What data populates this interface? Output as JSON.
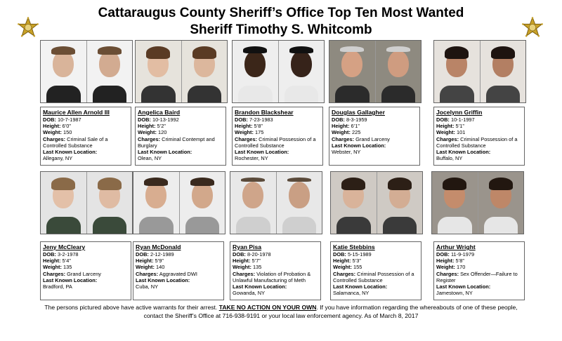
{
  "title_line1": "Cattaraugus County Sheriff’s Office Top Ten Most Wanted",
  "title_line2": "Sheriff Timothy S. Whitcomb",
  "labels": {
    "dob": "DOB:",
    "height": "Height:",
    "weight": "Weight:",
    "charges": "Charges:",
    "location": "Last Known Location:"
  },
  "wanted": [
    {
      "name": "Maurice Allen Arnold III",
      "dob": "10-7-1987",
      "height": "6’0”",
      "weight": "150",
      "charges": "Criminal Sale of a Controlled Substance",
      "location": "Allegany, NY"
    },
    {
      "name": "Angelica Baird",
      "dob": "10-13-1992",
      "height": "5’2”",
      "weight": "120",
      "charges": "Criminal Contempt and Burglary",
      "location": "Olean, NY"
    },
    {
      "name": "Brandon Blackshear",
      "dob": "7-23-1983",
      "height": "5’8”",
      "weight": "175",
      "charges": "Criminal Possession of a Controlled Substance",
      "location": "Rochester, NY"
    },
    {
      "name": "Douglas Gallagher",
      "dob": "8-3-1959",
      "height": "6’1”",
      "weight": "225",
      "charges": "Grand Larceny",
      "location": "Webster, NY"
    },
    {
      "name": "Jocelynn Griffin",
      "dob": "10-1-1997",
      "height": "5’1”",
      "weight": "101",
      "charges": "Criminal Possession of a Controlled Substance",
      "location": "Buffalo, NY"
    },
    {
      "name": "Jeny McCleary",
      "dob": "3-2-1978",
      "height": "5’4”",
      "weight": "135",
      "charges": "Grand Larceny",
      "location": "Bradford, PA"
    },
    {
      "name": "Ryan McDonald",
      "dob": "2-12-1989",
      "height": "5’9”",
      "weight": "140",
      "charges": "Aggravated DWI",
      "location": "Cuba, NY"
    },
    {
      "name": "Ryan Pisa",
      "dob": "8-20-1978",
      "height": "5’7”",
      "weight": "135",
      "charges": "Violation of Probation & Unlawful Manufacturing of Meth",
      "location": "Gowanda, NY"
    },
    {
      "name": "Katie Stebbins",
      "dob": "5-15-1989",
      "height": "5’3”",
      "weight": "155",
      "charges": "Criminal Possession of a Controlled Substance",
      "location": "Salamanca, NY"
    },
    {
      "name": "Arthur Wright",
      "dob": "11-9-1979",
      "height": "5’8”",
      "weight": "170",
      "charges": "Sex Offender—Failure to Register",
      "location": "Jamestown, NY"
    }
  ],
  "footer": {
    "line1_a": "The persons pictured above have active warrants for their arrest. ",
    "line1_b": "TAKE NO ACTION ON YOUR OWN",
    "line1_c": ". If you have information regarding the whereabouts of one of these people,",
    "line2": "contact the Sheriff’s Office at 716-938-9191 or your local law enforcement agency.  As of March 8, 2017"
  },
  "icons": {
    "badge": "sheriff-star-badge-icon"
  },
  "colors": {
    "badge_gold": "#c9a227",
    "badge_dark": "#7a5d0f"
  }
}
